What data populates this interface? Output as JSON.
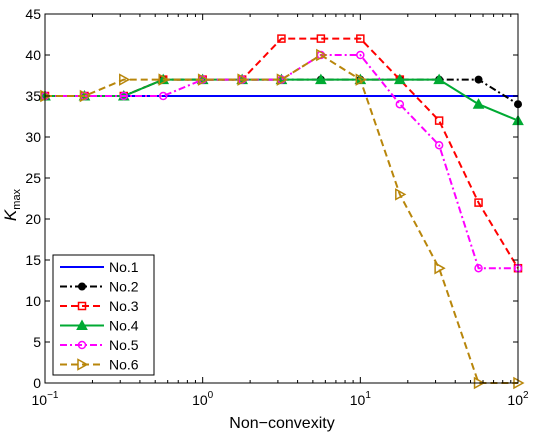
{
  "chart_data": {
    "type": "line",
    "xscale": "log",
    "xlabel": "Non−convexity",
    "ylabel": "K",
    "ylabel_sub": "max",
    "xlim": [
      0.1,
      100
    ],
    "ylim": [
      0,
      45
    ],
    "yticks": [
      0,
      5,
      10,
      15,
      20,
      25,
      30,
      35,
      40,
      45
    ],
    "xticks": [
      {
        "value": 0.1,
        "base": "10",
        "exp": "−1"
      },
      {
        "value": 1,
        "base": "10",
        "exp": "0"
      },
      {
        "value": 10,
        "base": "10",
        "exp": "1"
      },
      {
        "value": 100,
        "base": "10",
        "exp": "2"
      }
    ],
    "legend_position": "bottom-left",
    "grid": false,
    "x": [
      0.1,
      0.178,
      0.316,
      0.562,
      1,
      1.78,
      3.16,
      5.62,
      10,
      17.8,
      31.6,
      56.2,
      100
    ],
    "series": [
      {
        "name": "No.1",
        "color": "#0000ff",
        "dash": "solid",
        "marker": "none",
        "values": [
          35,
          35,
          35,
          35,
          35,
          35,
          35,
          35,
          35,
          35,
          35,
          35,
          35
        ]
      },
      {
        "name": "No.2",
        "color": "#000000",
        "dash": "dashdot",
        "marker": "dot",
        "values": [
          35,
          35,
          35,
          37,
          37,
          37,
          37,
          37,
          37,
          37,
          37,
          37,
          34
        ]
      },
      {
        "name": "No.3",
        "color": "#ff0000",
        "dash": "dashed",
        "marker": "square",
        "values": [
          35,
          35,
          35,
          37,
          37,
          37,
          42,
          42,
          42,
          37,
          32,
          22,
          14
        ]
      },
      {
        "name": "No.4",
        "color": "#00aa33",
        "dash": "solid",
        "marker": "triangle-up",
        "values": [
          35,
          35,
          35,
          37,
          37,
          37,
          37,
          37,
          37,
          37,
          37,
          34,
          32
        ]
      },
      {
        "name": "No.5",
        "color": "#ff00ff",
        "dash": "dashdot",
        "marker": "circle",
        "values": [
          35,
          35,
          35,
          35,
          37,
          37,
          37,
          40,
          40,
          34,
          29,
          14,
          14
        ]
      },
      {
        "name": "No.6",
        "color": "#b8860b",
        "dash": "dashed",
        "marker": "triangle-right",
        "values": [
          35,
          35,
          37,
          37,
          37,
          37,
          37,
          40,
          37,
          23,
          14,
          0,
          0
        ]
      }
    ]
  }
}
